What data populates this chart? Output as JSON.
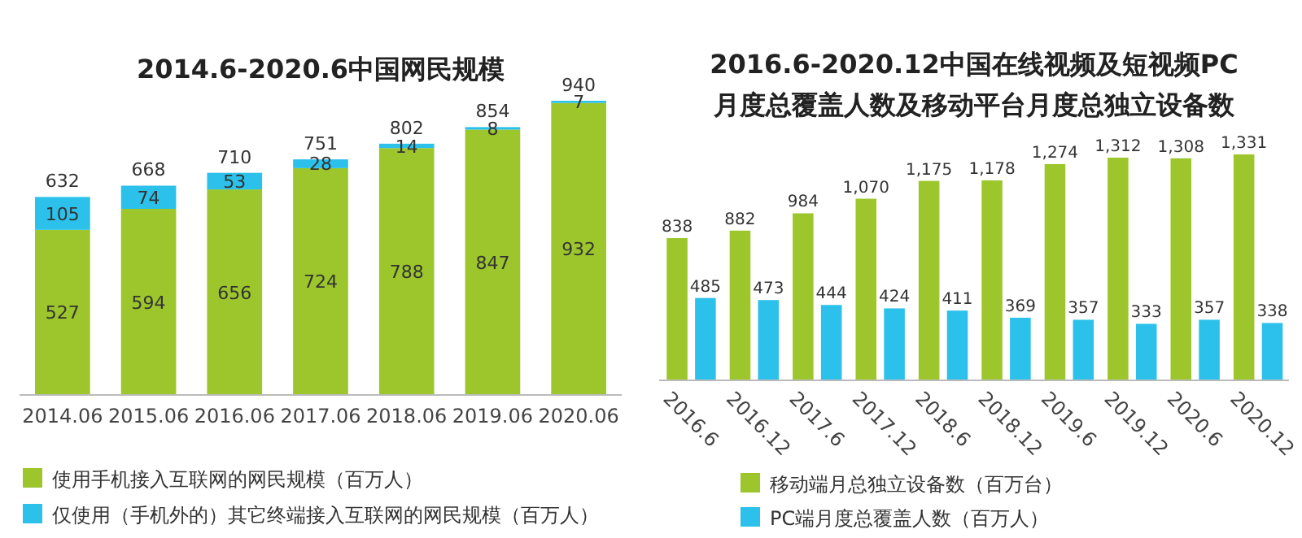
{
  "chart_data": [
    {
      "type": "bar",
      "title": "2014.6-2020.6中国网民规模",
      "stacked": true,
      "categories": [
        "2014.06",
        "2015.06",
        "2016.06",
        "2017.06",
        "2018.06",
        "2019.06",
        "2020.06"
      ],
      "series": [
        {
          "name": "使用手机接入互联网的网民规模（百万人）",
          "color": "#9cc62b",
          "values": [
            527,
            594,
            656,
            724,
            788,
            847,
            932
          ]
        },
        {
          "name": "仅使用（手机外的）其它终端接入互联网的网民规模（百万人）",
          "color": "#2cc1ea",
          "values": [
            105,
            74,
            53,
            28,
            14,
            8,
            7
          ]
        }
      ],
      "totals": [
        "632",
        "668",
        "710",
        "751",
        "802",
        "854",
        "940"
      ],
      "data_labels": true,
      "legend": "bottom"
    },
    {
      "type": "bar",
      "title": "2016.6-2020.12中国在线视频及短视频PC\n月度总覆盖人数及移动平台月度总独立设备数",
      "categories": [
        "2016.6",
        "2016.12",
        "2017.6",
        "2017.12",
        "2018.6",
        "2018.12",
        "2019.6",
        "2019.12",
        "2020.6",
        "2020.12"
      ],
      "series": [
        {
          "name": "移动端月总独立设备数（百万台）",
          "color": "#9cc62b",
          "values": [
            838,
            882,
            984,
            1070,
            1175,
            1178,
            1274,
            1312,
            1308,
            1331
          ],
          "value_labels": [
            "838",
            "882",
            "984",
            "1,070",
            "1,175",
            "1,178",
            "1,274",
            "1,312",
            "1,308",
            "1,331"
          ]
        },
        {
          "name": "PC端月度总覆盖人数（百万人）",
          "color": "#2cc1ea",
          "values": [
            485,
            473,
            444,
            424,
            411,
            369,
            357,
            333,
            357,
            338
          ],
          "value_labels": [
            "485",
            "473",
            "444",
            "424",
            "411",
            "369",
            "357",
            "333",
            "357",
            "338"
          ]
        }
      ],
      "legend": "bottom"
    }
  ]
}
